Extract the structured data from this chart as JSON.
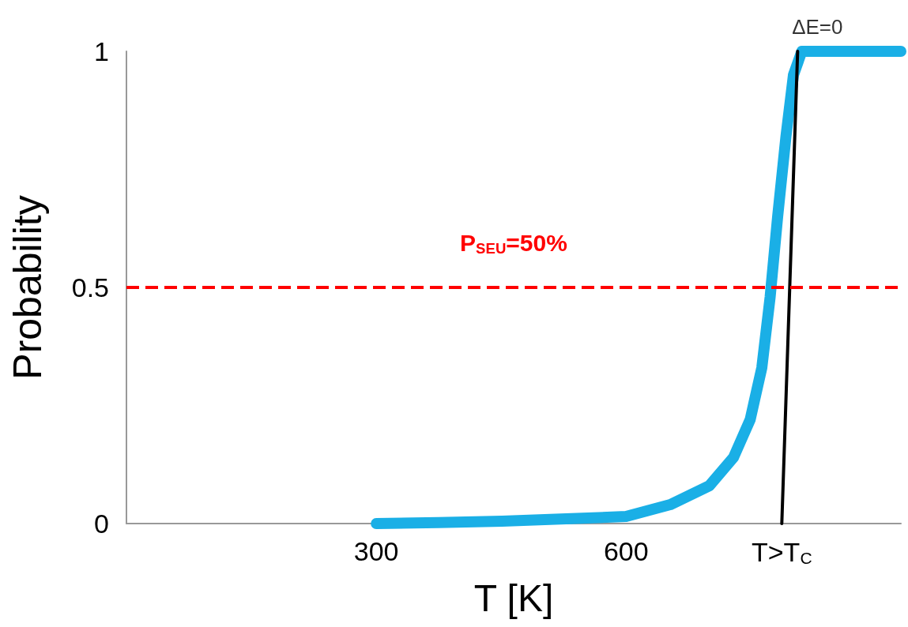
{
  "chart_data": {
    "type": "line",
    "xlabel": "T [K]",
    "ylabel": "Probability",
    "xlim": [
      0,
      930
    ],
    "xticks": [
      300,
      600,
      {
        "value": 787,
        "label": "T>T$_{C}$"
      }
    ],
    "ylim": [
      0,
      1
    ],
    "yticks": [
      0,
      0.5,
      1
    ],
    "grid": false,
    "marker": "none",
    "series": [
      {
        "color": "#1aafe6",
        "x": [
          300,
          375,
          451,
          528,
          600,
          653,
          700,
          729,
          749,
          763,
          773,
          782,
          792,
          801,
          811,
          930
        ],
        "values": [
          0,
          0.002,
          0.005,
          0.01,
          0.015,
          0.04,
          0.08,
          0.14,
          0.22,
          0.33,
          0.48,
          0.65,
          0.82,
          0.95,
          1,
          1
        ]
      },
      {
        "color": "#000000",
        "x": [
          787,
          806
        ],
        "values": [
          0,
          1
        ]
      }
    ],
    "ref_lines": [
      {
        "axis": "y",
        "value": 0.5,
        "label": "P$_{SEU}$=50%",
        "color": "#ff0000",
        "line_style": "dashed"
      }
    ],
    "annotations": [
      {
        "text": "ΔE=0",
        "x": 806,
        "y": 1
      }
    ]
  }
}
